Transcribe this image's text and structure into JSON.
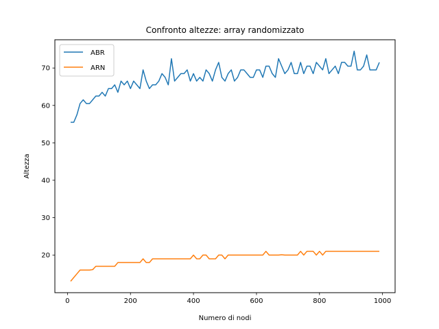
{
  "chart_data": {
    "type": "line",
    "title": "Confronto altezze: array randomizzato",
    "xlabel": "Numero di nodi",
    "ylabel": "Altezza",
    "xlim": [
      -40,
      1040
    ],
    "ylim": [
      9.95,
      77.55
    ],
    "xticks": [
      0,
      200,
      400,
      600,
      800,
      1000
    ],
    "yticks": [
      20,
      30,
      40,
      50,
      60,
      70
    ],
    "grid": false,
    "legend_position": "top-left",
    "x": [
      10,
      20,
      30,
      40,
      50,
      60,
      70,
      80,
      90,
      100,
      110,
      120,
      130,
      140,
      150,
      160,
      170,
      180,
      190,
      200,
      210,
      220,
      230,
      240,
      250,
      260,
      270,
      280,
      290,
      300,
      310,
      320,
      330,
      340,
      350,
      360,
      370,
      380,
      390,
      400,
      410,
      420,
      430,
      440,
      450,
      460,
      470,
      480,
      490,
      500,
      510,
      520,
      530,
      540,
      550,
      560,
      570,
      580,
      590,
      600,
      610,
      620,
      630,
      640,
      650,
      660,
      670,
      680,
      690,
      700,
      710,
      720,
      730,
      740,
      750,
      760,
      770,
      780,
      790,
      800,
      810,
      820,
      830,
      840,
      850,
      860,
      870,
      880,
      890,
      900,
      910,
      920,
      930,
      940,
      950,
      960,
      970,
      980,
      990
    ],
    "series": [
      {
        "name": "ABR",
        "color": "#1f77b4",
        "values": [
          55.5,
          55.5,
          57.5,
          60.5,
          61.5,
          60.5,
          60.5,
          61.5,
          62.5,
          62.5,
          63.5,
          62.5,
          64.5,
          64.5,
          65.5,
          63.5,
          66.5,
          65.5,
          66.5,
          64.5,
          66.5,
          65.5,
          64.5,
          69.5,
          66.5,
          64.5,
          65.5,
          65.5,
          66.5,
          68.5,
          67.5,
          65.5,
          72.5,
          66.5,
          67.5,
          68.5,
          68.5,
          69.5,
          66.5,
          68.5,
          66.5,
          67.5,
          66.5,
          69.5,
          68.5,
          66.5,
          69.5,
          71.5,
          67.5,
          66.5,
          68.5,
          69.5,
          66.5,
          67.5,
          69.5,
          69.5,
          68.5,
          67.5,
          67.5,
          69.5,
          69.5,
          67.5,
          70.5,
          70.5,
          68.5,
          67.5,
          72.5,
          70.5,
          68.5,
          69.5,
          71.5,
          68.5,
          68.5,
          71.5,
          68.5,
          70.5,
          70.5,
          68.5,
          71.5,
          70.5,
          69.5,
          72.5,
          68.5,
          69.5,
          70.5,
          68.5,
          71.5,
          71.5,
          70.5,
          70.5,
          74.5,
          69.5,
          69.5,
          70.5,
          73.5,
          69.5,
          69.5,
          69.5,
          71.5
        ]
      },
      {
        "name": "ARN",
        "color": "#ff7f0e",
        "values": [
          13.0,
          14.0,
          15.0,
          16.0,
          16.0,
          16.0,
          16.0,
          16.1,
          17.0,
          17.0,
          17.0,
          17.0,
          17.0,
          17.0,
          17.0,
          18.0,
          18.0,
          18.0,
          18.0,
          18.0,
          18.0,
          18.0,
          18.0,
          19.0,
          18.0,
          18.0,
          19.0,
          19.0,
          19.0,
          19.0,
          19.0,
          19.0,
          19.0,
          19.0,
          19.0,
          19.0,
          19.0,
          19.0,
          19.0,
          20.0,
          19.0,
          19.0,
          20.0,
          20.0,
          19.0,
          19.0,
          19.0,
          20.0,
          20.0,
          19.0,
          20.0,
          20.0,
          20.0,
          20.0,
          20.0,
          20.0,
          20.0,
          20.0,
          20.0,
          20.0,
          20.0,
          20.0,
          21.0,
          20.0,
          20.0,
          20.0,
          20.0,
          20.1,
          20.0,
          20.0,
          20.0,
          20.0,
          20.0,
          21.0,
          20.0,
          21.0,
          21.0,
          21.0,
          20.0,
          21.0,
          20.0,
          21.0,
          21.0,
          21.0,
          21.0,
          21.0,
          21.0,
          21.0,
          21.0,
          21.0,
          21.0,
          21.0,
          21.0,
          21.0,
          21.0,
          21.0,
          21.0,
          21.0,
          21.0
        ]
      }
    ]
  }
}
